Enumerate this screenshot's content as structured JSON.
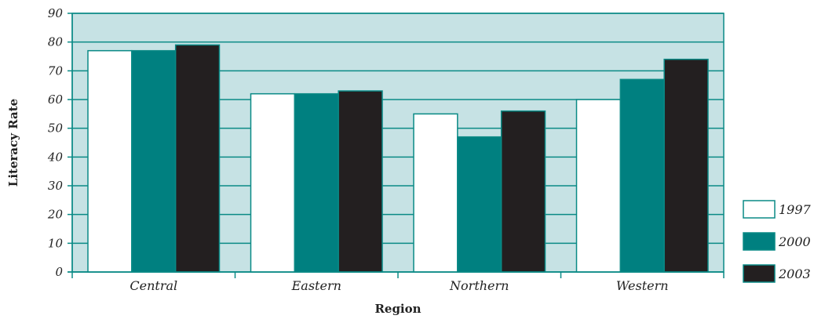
{
  "chart_data": {
    "type": "bar",
    "title": "",
    "xlabel": "Region",
    "ylabel": "Literacy Rate",
    "ylim": [
      0,
      90
    ],
    "yticks": [
      "0",
      "10",
      "20",
      "30",
      "40",
      "50",
      "60",
      "70",
      "80",
      "90"
    ],
    "categories": [
      "Central",
      "Eastern",
      "Northern",
      "Western"
    ],
    "series": [
      {
        "name": "1997",
        "values": [
          77,
          62,
          55,
          60
        ]
      },
      {
        "name": "2000",
        "values": [
          77,
          62,
          47,
          67
        ]
      },
      {
        "name": "2003",
        "values": [
          79,
          63,
          56,
          74
        ]
      }
    ],
    "grid": true,
    "legend": "right",
    "colors": {
      "plot_background": "#c6e2e4",
      "grid": "#0a8a86",
      "series": [
        "#ffffff",
        "#008080",
        "#231f20"
      ],
      "bar_border": "#0a8a86"
    }
  }
}
